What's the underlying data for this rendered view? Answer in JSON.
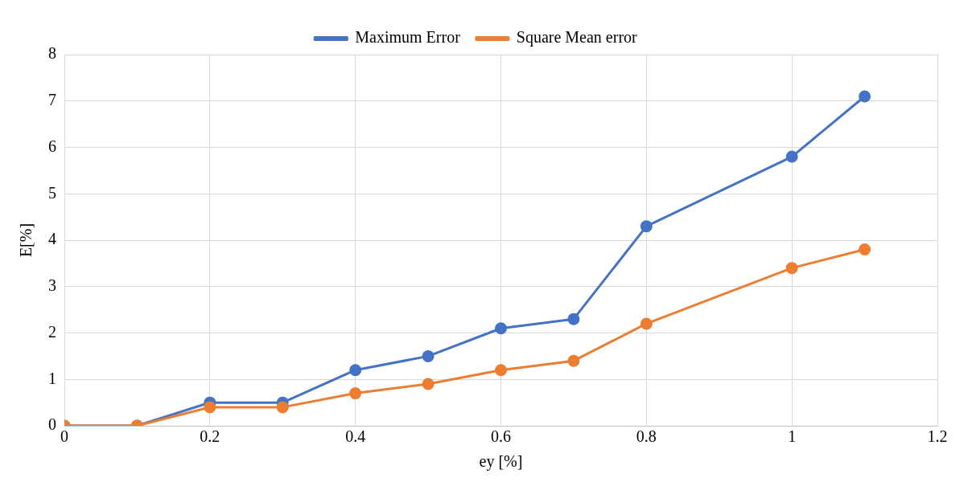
{
  "chart_data": {
    "type": "line",
    "xlabel": "ey [%]",
    "ylabel": "E[%]",
    "x": [
      0,
      0.1,
      0.2,
      0.3,
      0.4,
      0.5,
      0.6,
      0.7,
      0.8,
      1.0,
      1.1
    ],
    "series": [
      {
        "name": "Maximum Error",
        "color": "#4472c4",
        "values": [
          0,
          0,
          0.5,
          0.5,
          1.2,
          1.5,
          2.1,
          2.3,
          4.3,
          5.8,
          7.1
        ]
      },
      {
        "name": "Square Mean error",
        "color": "#ed7d31",
        "values": [
          0,
          0,
          0.4,
          0.4,
          0.7,
          0.9,
          1.2,
          1.4,
          2.2,
          3.4,
          3.8
        ]
      }
    ],
    "xlim": [
      0,
      1.2
    ],
    "xticks": [
      0,
      0.2,
      0.4,
      0.6,
      0.8,
      1,
      1.2
    ],
    "ylim": [
      0,
      8
    ],
    "yticks": [
      0,
      1,
      2,
      3,
      4,
      5,
      6,
      7,
      8
    ],
    "grid": true,
    "legend": "top",
    "marker": "circle",
    "line_style": "solid"
  }
}
